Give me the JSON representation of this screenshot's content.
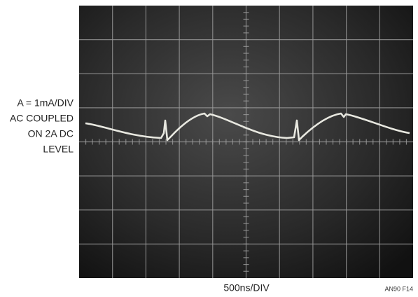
{
  "labels": {
    "channel": [
      "A = 1mA/DIV",
      "AC COUPLED",
      "ON 2A DC",
      "LEVEL"
    ],
    "time_scale": "500ns/DIV",
    "figure_id": "AN90 F14"
  }
}
